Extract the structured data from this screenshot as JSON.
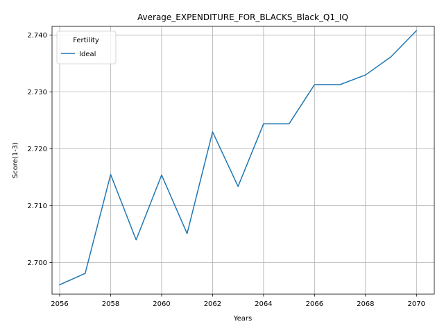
{
  "chart_data": {
    "type": "line",
    "title": "Average_EXPENDITURE_FOR_BLACKS_Black_Q1_IQ",
    "xlabel": "Years",
    "ylabel": "Score(1-3)",
    "x": [
      2056,
      2057,
      2058,
      2059,
      2060,
      2061,
      2062,
      2063,
      2064,
      2065,
      2066,
      2067,
      2068,
      2069,
      2070
    ],
    "series": [
      {
        "name": "Ideal",
        "color": "#1f77b4",
        "values": [
          2.6961,
          2.6981,
          2.7155,
          2.704,
          2.7154,
          2.7051,
          2.723,
          2.7134,
          2.7244,
          2.7244,
          2.7313,
          2.7313,
          2.733,
          2.7362,
          2.7408
        ]
      }
    ],
    "xlim": [
      2055.7,
      2070.7
    ],
    "ylim": [
      2.69445,
      2.74155
    ],
    "xticks": [
      "2056",
      "2058",
      "2060",
      "2062",
      "2064",
      "2066",
      "2068",
      "2070"
    ],
    "yticks": [
      "2.700",
      "2.710",
      "2.720",
      "2.730",
      "2.740"
    ],
    "grid": true,
    "legend": {
      "title": "Fertility",
      "placement": "top-left"
    }
  }
}
